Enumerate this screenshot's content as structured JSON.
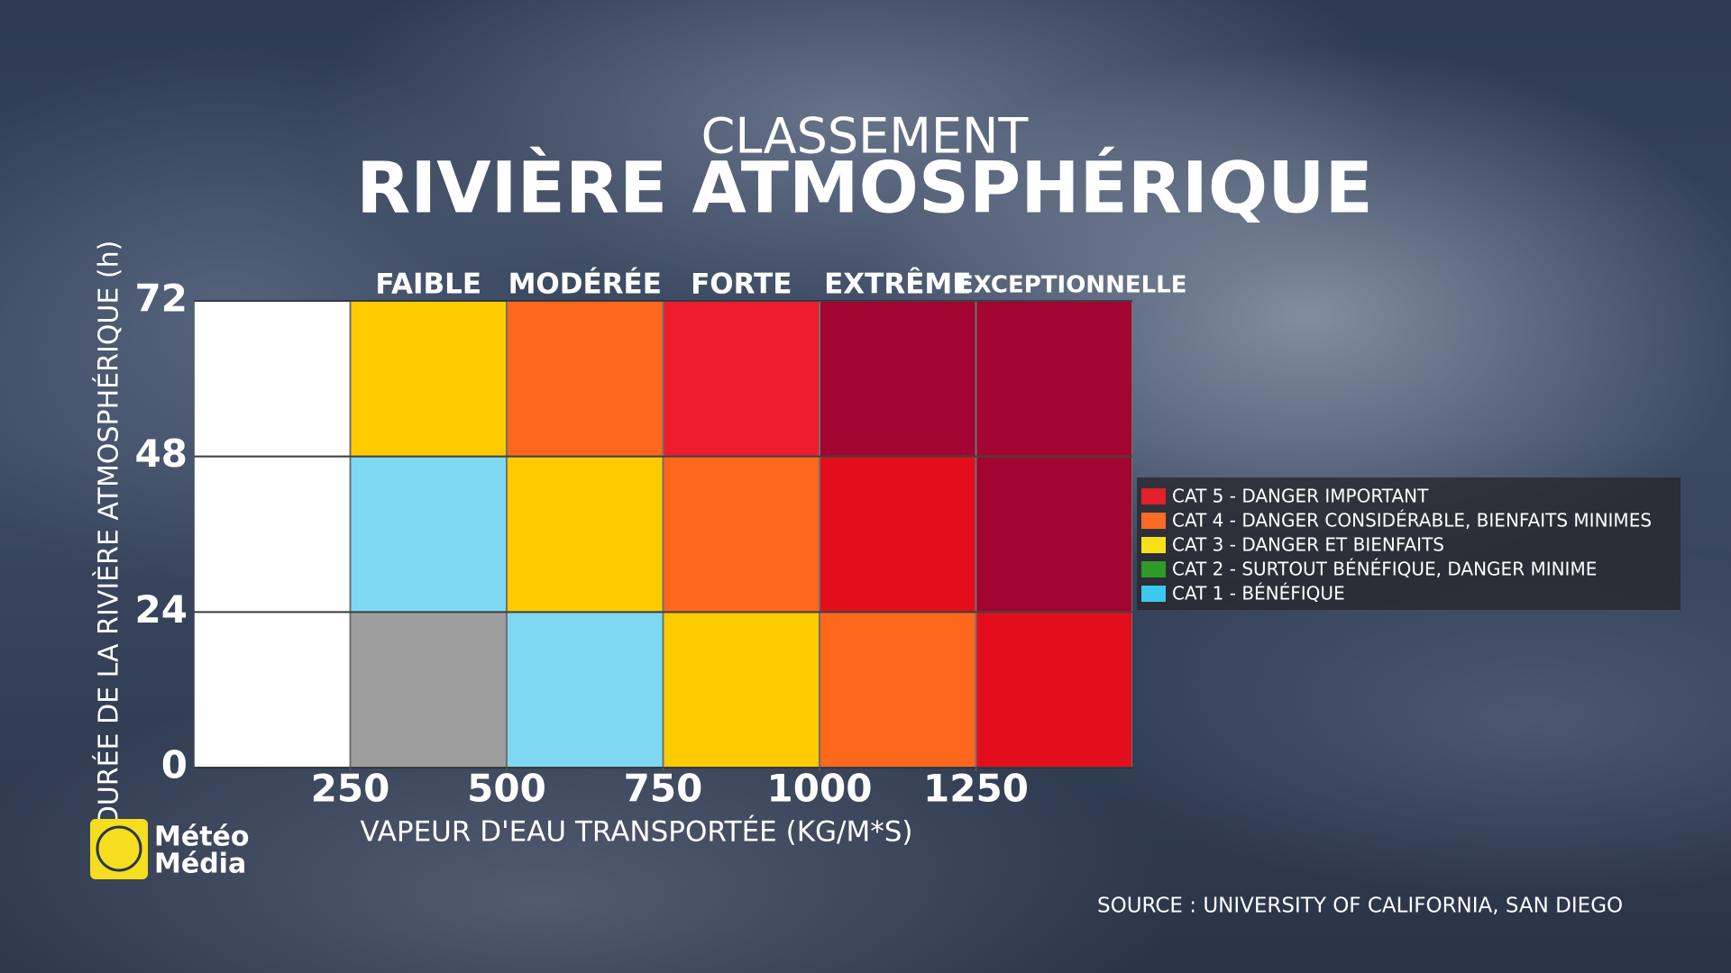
{
  "chart_data": {
    "type": "heatmap",
    "pretitle": "CLASSEMENT",
    "title": "RIVIÈRE ATMOSPHÉRIQUE",
    "x_label": "VAPEUR D'EAU TRANSPORTÉE (KG/M*S)",
    "y_label": "DURÉE DE LA RIVIÈRE ATMOSPHÉRIQUE (h)",
    "categories": [
      null,
      "FAIBLE",
      "MODÉRÉE",
      "FORTE",
      "EXTRÊME",
      "EXCEPTIONNELLE"
    ],
    "xbins": [
      0,
      250,
      500,
      750,
      1000,
      1250,
      1500
    ],
    "xlim": [
      0,
      1500
    ],
    "xticks": [
      250,
      500,
      750,
      1000,
      1250
    ],
    "ybins": [
      0,
      24,
      48,
      72
    ],
    "ylim": [
      0,
      72
    ],
    "yticks": [
      0,
      24,
      48,
      72
    ],
    "cell_colors": [
      [
        "#ffffff",
        "#9e9e9e",
        "#7fd8f1",
        "#fdcb00",
        "#fd681c",
        "#e30e1c"
      ],
      [
        "#ffffff",
        "#7fd8f1",
        "#fdcb00",
        "#fd681c",
        "#e30e1c",
        "#a10530"
      ],
      [
        "#ffffff",
        "#fdcb00",
        "#fd681c",
        "#ed1c2e",
        "#a10530",
        "#a10530"
      ]
    ],
    "legend": [
      {
        "name": "CAT 5 - DANGER IMPORTANT",
        "color": "#e3202c"
      },
      {
        "name": "CAT 4 - DANGER CONSIDÉRABLE, BIENFAITS MINIMES",
        "color": "#fd6a24"
      },
      {
        "name": "CAT 3 - DANGER ET BIENFAITS",
        "color": "#f7e21a"
      },
      {
        "name": "CAT 2 - SURTOUT BÉNÉFIQUE, DANGER MINIME",
        "color": "#2e9a2a"
      },
      {
        "name": "CAT 1 - BÉNÉFIQUE",
        "color": "#3bc9f0"
      }
    ],
    "source": "SOURCE : UNIVERSITY OF CALIFORNIA, SAN DIEGO",
    "logo": [
      "Météo",
      "Média"
    ]
  }
}
